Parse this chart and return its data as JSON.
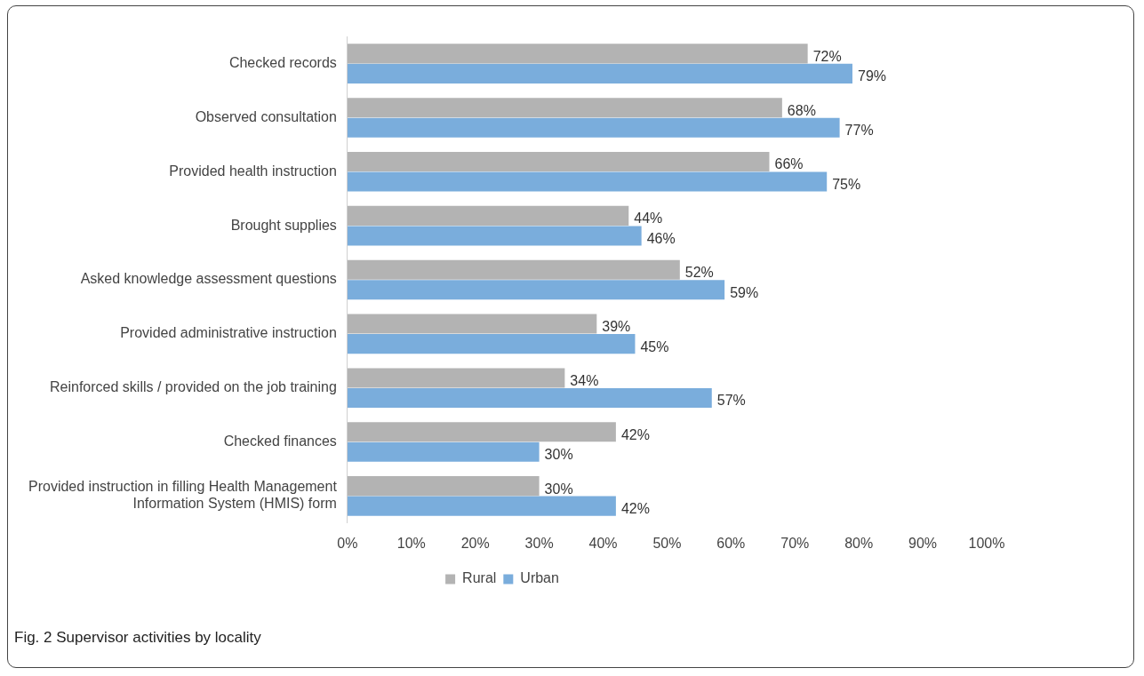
{
  "chart_data": {
    "type": "bar",
    "orientation": "horizontal",
    "categories": [
      "Checked records",
      "Observed consultation",
      "Provided health instruction",
      "Brought supplies",
      "Asked knowledge assessment questions",
      "Provided administrative instruction",
      "Reinforced skills / provided on the job training",
      "Checked finances",
      "Provided instruction in filling Health Management Information System (HMIS) form"
    ],
    "series": [
      {
        "name": "Rural",
        "color": "#b3b3b3",
        "values": [
          72,
          68,
          66,
          44,
          52,
          39,
          34,
          42,
          30
        ],
        "value_labels": [
          "72%",
          "68%",
          "66%",
          "44%",
          "52%",
          "39%",
          "34%",
          "42%",
          "30%"
        ]
      },
      {
        "name": "Urban",
        "color": "#7aaddc",
        "values": [
          79,
          77,
          75,
          46,
          59,
          45,
          57,
          30,
          42
        ],
        "value_labels": [
          "79%",
          "77%",
          "75%",
          "46%",
          "59%",
          "45%",
          "57%",
          "30%",
          "42%"
        ]
      }
    ],
    "xlim": [
      0,
      100
    ],
    "xticks": [
      {
        "value": 0,
        "label": "0%"
      },
      {
        "value": 10,
        "label": "10%"
      },
      {
        "value": 20,
        "label": "20%"
      },
      {
        "value": 30,
        "label": "30%"
      },
      {
        "value": 40,
        "label": "40%"
      },
      {
        "value": 50,
        "label": "50%"
      },
      {
        "value": 60,
        "label": "60%"
      },
      {
        "value": 70,
        "label": "70%"
      },
      {
        "value": 80,
        "label": "80%"
      },
      {
        "value": 90,
        "label": "90%"
      },
      {
        "value": 100,
        "label": "100%"
      }
    ],
    "grid": false,
    "legend": "bottom",
    "annotations": [
      "Fig. 2 Supervisor activities by locality"
    ]
  }
}
